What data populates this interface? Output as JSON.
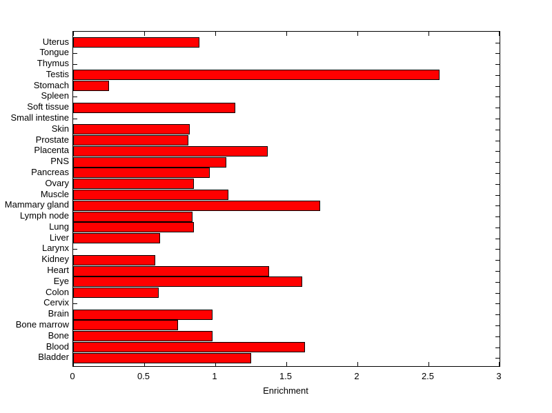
{
  "figure": {
    "background": "#ffffff",
    "plot_border_color": "#000000"
  },
  "chart_data": {
    "type": "bar",
    "orientation": "horizontal",
    "title": "",
    "xlabel": "Enrichment",
    "ylabel": "",
    "xlim": [
      0,
      3
    ],
    "xticks": [
      0,
      0.5,
      1,
      1.5,
      2,
      2.5,
      3
    ],
    "xtick_labels": [
      "0",
      "0.5",
      "1",
      "1.5",
      "2",
      "2.5",
      "3"
    ],
    "grid": false,
    "legend_position": "none",
    "bar_color": "#ff0000",
    "bar_edge_color": "#000000",
    "categories": [
      "Uterus",
      "Tongue",
      "Thymus",
      "Testis",
      "Stomach",
      "Spleen",
      "Soft tissue",
      "Small intestine",
      "Skin",
      "Prostate",
      "Placenta",
      "PNS",
      "Pancreas",
      "Ovary",
      "Muscle",
      "Mammary gland",
      "Lymph node",
      "Lung",
      "Liver",
      "Larynx",
      "Kidney",
      "Heart",
      "Eye",
      "Colon",
      "Cervix",
      "Brain",
      "Bone marrow",
      "Bone",
      "Blood",
      "Bladder"
    ],
    "values": [
      0.89,
      0,
      0,
      2.58,
      0.25,
      0,
      1.14,
      0,
      0.82,
      0.81,
      1.37,
      1.08,
      0.96,
      0.85,
      1.09,
      1.74,
      0.84,
      0.85,
      0.61,
      0,
      0.58,
      1.38,
      1.61,
      0.6,
      0,
      0.98,
      0.74,
      0.98,
      1.63,
      1.25
    ]
  }
}
